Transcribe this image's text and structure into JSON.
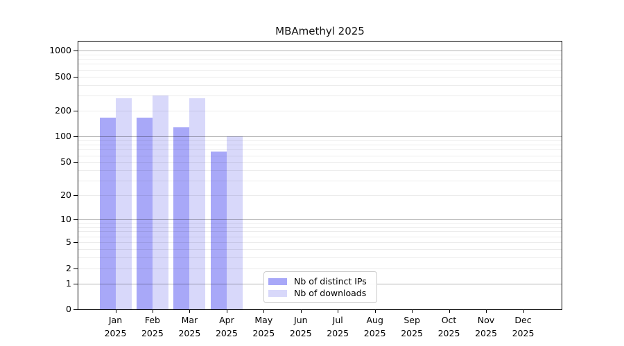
{
  "chart_data": {
    "type": "bar",
    "title": "MBAmethyl 2025",
    "categories": [
      [
        "Jan",
        "2025"
      ],
      [
        "Feb",
        "2025"
      ],
      [
        "Mar",
        "2025"
      ],
      [
        "Apr",
        "2025"
      ],
      [
        "May",
        "2025"
      ],
      [
        "Jun",
        "2025"
      ],
      [
        "Jul",
        "2025"
      ],
      [
        "Aug",
        "2025"
      ],
      [
        "Sep",
        "2025"
      ],
      [
        "Oct",
        "2025"
      ],
      [
        "Nov",
        "2025"
      ],
      [
        "Dec",
        "2025"
      ]
    ],
    "series": [
      {
        "name": "Nb of distinct IPs",
        "color": "#a8a8f8",
        "values": [
          167,
          165,
          127,
          66,
          null,
          null,
          null,
          null,
          null,
          null,
          null,
          null
        ]
      },
      {
        "name": "Nb of downloads",
        "color": "#d8d8fa",
        "values": [
          280,
          298,
          277,
          100,
          null,
          null,
          null,
          null,
          null,
          null,
          null,
          null
        ]
      }
    ],
    "y_axis": {
      "scale": "log10(value+1)",
      "tick_values": [
        0,
        1,
        2,
        5,
        10,
        20,
        50,
        100,
        200,
        500,
        1000
      ],
      "tick_labels": [
        "0",
        "1",
        "2",
        "5",
        "10",
        "20",
        "50",
        "100",
        "200",
        "500",
        "1000"
      ],
      "axis_max_value": 1272,
      "major_grid_values": [
        1,
        10,
        100,
        1000
      ],
      "minor_grid_values": [
        2,
        3,
        4,
        5,
        6,
        7,
        8,
        9,
        20,
        30,
        40,
        50,
        60,
        70,
        80,
        90,
        200,
        300,
        400,
        500,
        600,
        700,
        800,
        900
      ]
    },
    "legend_position": "inside-bottom-center",
    "grid": true
  }
}
